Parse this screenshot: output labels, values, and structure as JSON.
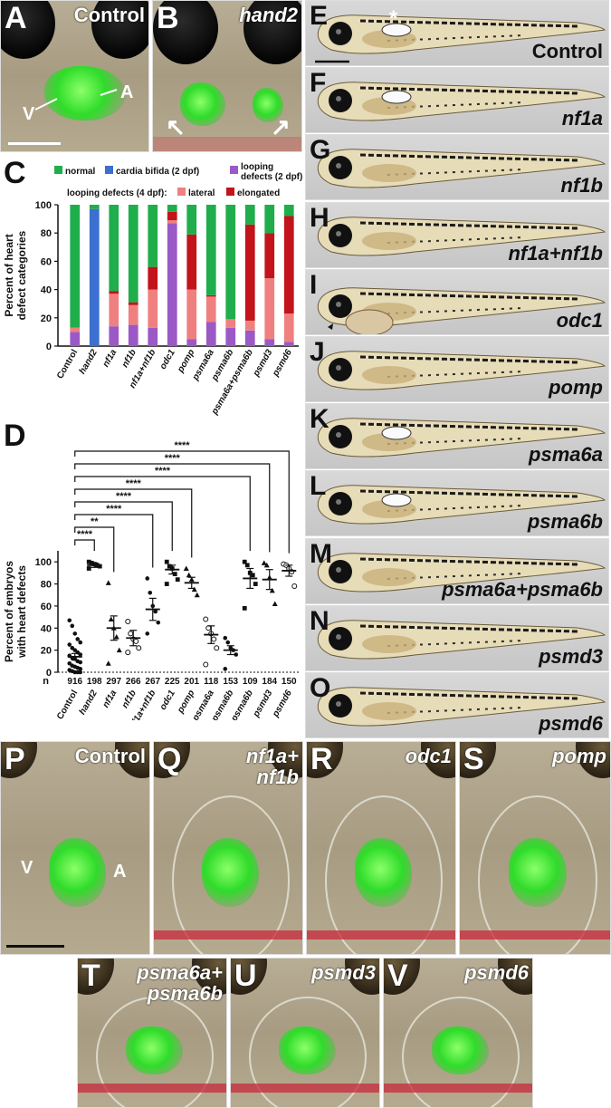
{
  "panels": {
    "A": {
      "letter": "A",
      "title": "Control",
      "v_label": "V",
      "a_label": "A"
    },
    "B": {
      "letter": "B",
      "title": "hand2"
    },
    "C": {
      "letter": "C"
    },
    "D": {
      "letter": "D"
    },
    "larvae": [
      {
        "letter": "E",
        "label": "Control",
        "asterisk": "*"
      },
      {
        "letter": "F",
        "label": "nf1a"
      },
      {
        "letter": "G",
        "label": "nf1b"
      },
      {
        "letter": "H",
        "label": "nf1a+nf1b"
      },
      {
        "letter": "I",
        "label": "odc1"
      },
      {
        "letter": "J",
        "label": "pomp"
      },
      {
        "letter": "K",
        "label": "psma6a"
      },
      {
        "letter": "L",
        "label": "psma6b"
      },
      {
        "letter": "M",
        "label": "psma6a+psma6b"
      },
      {
        "letter": "N",
        "label": "psmd3"
      },
      {
        "letter": "O",
        "label": "psmd6"
      }
    ],
    "hearts": [
      {
        "letter": "P",
        "label": "Control",
        "v_label": "V",
        "a_label": "A"
      },
      {
        "letter": "Q",
        "label": "nf1a+\nnf1b"
      },
      {
        "letter": "R",
        "label": "odc1"
      },
      {
        "letter": "S",
        "label": "pomp"
      },
      {
        "letter": "T",
        "label": "psma6a+\npsma6b"
      },
      {
        "letter": "U",
        "label": "psmd3"
      },
      {
        "letter": "V",
        "label": "psmd6"
      }
    ]
  },
  "chart_data": [
    {
      "type": "bar",
      "stacked": true,
      "ylabel": "Percent of heart\ndefect categories",
      "ylim": [
        0,
        100
      ],
      "yticks": [
        0,
        20,
        40,
        60,
        80,
        100
      ],
      "legend": {
        "normal": "normal",
        "bifida": "cardia bifida (2 dpf)",
        "looping2": "looping\ndefects (2 dpf)",
        "looping4_prefix": "looping defects (4 dpf):",
        "lateral": "lateral",
        "elongated": "elongated"
      },
      "colors": {
        "normal": "#1fae4b",
        "bifida": "#3b6fd0",
        "looping2": "#9b59c6",
        "lateral": "#f08080",
        "elongated": "#c2141a"
      },
      "categories": [
        "Control",
        "hand2",
        "nf1a",
        "nf1b",
        "nf1a+nf1b",
        "odc1",
        "pomp",
        "psma6a",
        "psma6b",
        "psma6a+psma6b",
        "psmd3",
        "psmd6"
      ],
      "series": [
        {
          "name": "cardia bifida (2 dpf)",
          "key": "bifida",
          "values": [
            0,
            97,
            0,
            0,
            0,
            0,
            0,
            0,
            0,
            0,
            0,
            0
          ]
        },
        {
          "name": "looping defects (2 dpf)",
          "key": "looping2",
          "values": [
            10,
            0,
            14,
            15,
            13,
            87,
            5,
            17,
            13,
            11,
            5,
            3
          ]
        },
        {
          "name": "lateral",
          "key": "lateral",
          "values": [
            3,
            0,
            23,
            14,
            27,
            2,
            35,
            18,
            6,
            7,
            43,
            20
          ]
        },
        {
          "name": "elongated",
          "key": "elongated",
          "values": [
            0,
            0,
            2,
            2,
            16,
            6,
            39,
            1,
            0,
            68,
            32,
            69
          ]
        },
        {
          "name": "normal",
          "key": "normal",
          "values": [
            87,
            3,
            61,
            69,
            44,
            5,
            21,
            64,
            81,
            14,
            20,
            8
          ]
        }
      ]
    },
    {
      "type": "scatter",
      "ylabel": "Percent of embryos\nwith heart defects",
      "ylim": [
        0,
        110
      ],
      "yticks": [
        0,
        20,
        40,
        60,
        80,
        100
      ],
      "n_label": "n",
      "categories": [
        "Control",
        "hand2",
        "nf1a",
        "nf1b",
        "nf1a+nf1b",
        "odc1",
        "pomp",
        "psma6a",
        "psma6b",
        "psma6a+psma6b",
        "psmd3",
        "psmd6"
      ],
      "n": [
        "916",
        "198",
        "297",
        "266",
        "267",
        "225",
        "201",
        "118",
        "153",
        "109",
        "184",
        "150"
      ],
      "means": [
        14,
        97,
        40,
        31,
        57,
        93,
        81,
        34,
        20,
        85,
        84,
        92
      ],
      "sem": [
        3,
        2,
        11,
        7,
        10,
        4,
        5,
        8,
        4,
        9,
        9,
        5
      ],
      "markers": [
        "circle",
        "square",
        "triangle",
        "open-circle",
        "circle",
        "square",
        "triangle",
        "open-circle",
        "circle",
        "square",
        "triangle",
        "open-circle"
      ],
      "points": [
        [
          47,
          42,
          35,
          30,
          27,
          25,
          22,
          20,
          18,
          16,
          15,
          13,
          12,
          10,
          9,
          8,
          6,
          5,
          4,
          3,
          2,
          1,
          0,
          0,
          0
        ],
        [
          100,
          99,
          98,
          97,
          96,
          94
        ],
        [
          81,
          48,
          40,
          32,
          20,
          8
        ],
        [
          46,
          35,
          30,
          28,
          22,
          18
        ],
        [
          85,
          72,
          60,
          55,
          45,
          35
        ],
        [
          100,
          96,
          94,
          89,
          84,
          80
        ],
        [
          94,
          88,
          84,
          75,
          70
        ],
        [
          48,
          40,
          35,
          30,
          22,
          7
        ],
        [
          31,
          27,
          22,
          20,
          16,
          3
        ],
        [
          100,
          97,
          90,
          88,
          80,
          58
        ],
        [
          99,
          97,
          86,
          74,
          62
        ],
        [
          98,
          97,
          94,
          91,
          78
        ]
      ],
      "significance": [
        {
          "from": 0,
          "to": 1,
          "label": "****"
        },
        {
          "from": 0,
          "to": 2,
          "label": "**"
        },
        {
          "from": 0,
          "to": 4,
          "label": "****"
        },
        {
          "from": 0,
          "to": 5,
          "label": "****"
        },
        {
          "from": 0,
          "to": 6,
          "label": "****"
        },
        {
          "from": 0,
          "to": 9,
          "label": "****"
        },
        {
          "from": 0,
          "to": 10,
          "label": "****"
        },
        {
          "from": 0,
          "to": 11,
          "label": "****"
        }
      ]
    }
  ]
}
